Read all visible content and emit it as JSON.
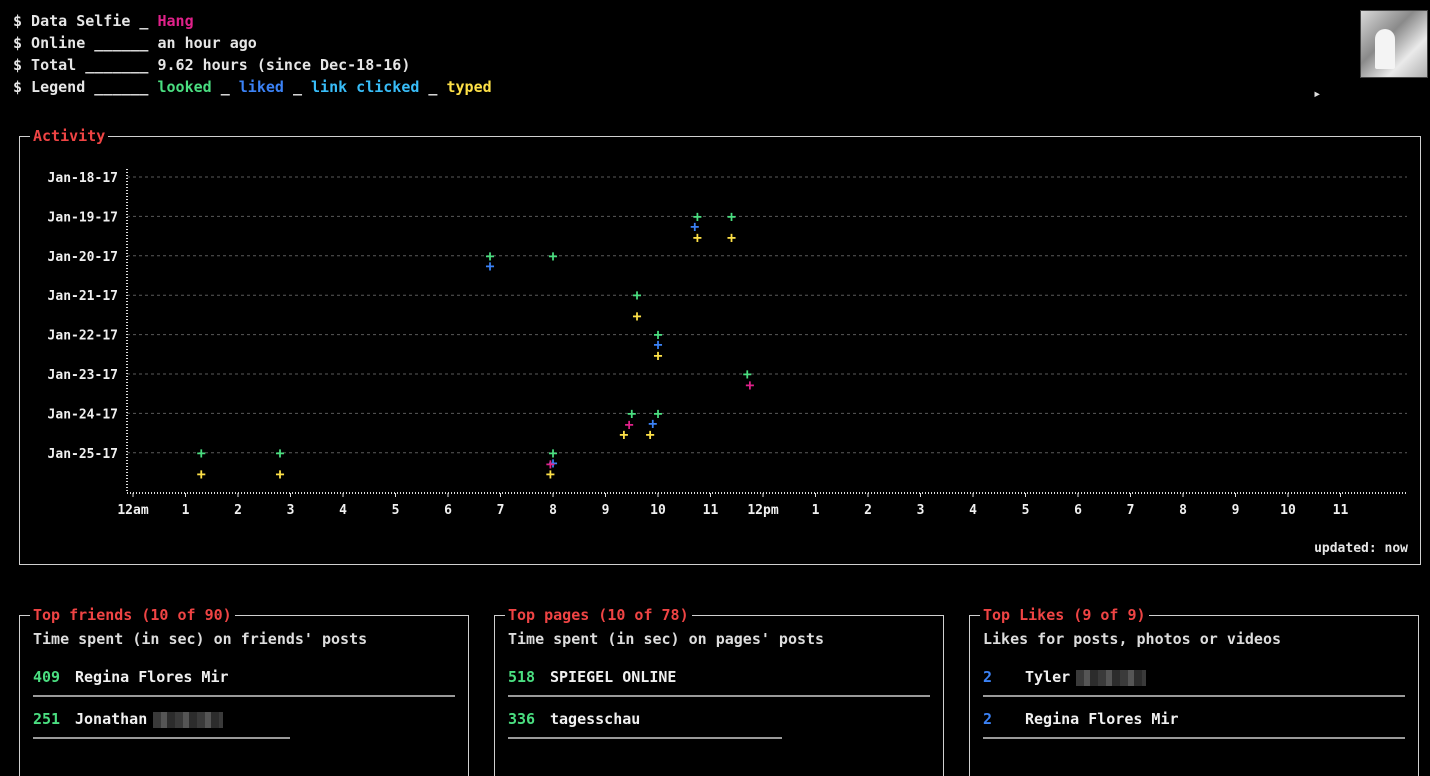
{
  "header": {
    "line1_prefix": "$ Data Selfie _ ",
    "user_name": "Hang",
    "line2_prefix": "$ Online ______ ",
    "online_value": "an hour ago",
    "line3_prefix": "$ Total _______ ",
    "total_value": "9.62 hours (since Dec-18-16)",
    "line4_prefix": "$ Legend ______ ",
    "legend_looked": "looked",
    "sep": " _ ",
    "legend_liked": "liked",
    "legend_link": "link clicked",
    "legend_typed": "typed"
  },
  "colors": {
    "looked": "#4ade80",
    "liked": "#3b82f6",
    "link": "#38bdf8",
    "typed": "#fde047",
    "other": "#e0218a",
    "title": "#ef4444"
  },
  "activity": {
    "title": "Activity",
    "updated": "updated: now"
  },
  "chart_data": {
    "type": "scatter",
    "y_categories": [
      "Jan-18-17",
      "Jan-19-17",
      "Jan-20-17",
      "Jan-21-17",
      "Jan-22-17",
      "Jan-23-17",
      "Jan-24-17",
      "Jan-25-17"
    ],
    "x_tick_labels": [
      "12am",
      "1",
      "2",
      "3",
      "4",
      "5",
      "6",
      "7",
      "8",
      "9",
      "10",
      "11",
      "12pm",
      "1",
      "2",
      "3",
      "4",
      "5",
      "6",
      "7",
      "8",
      "9",
      "10",
      "11"
    ],
    "x_range_hours": [
      0,
      24
    ],
    "grid": true,
    "series": [
      {
        "name": "looked",
        "marker": "+",
        "points": [
          [
            10.75,
            "Jan-19-17"
          ],
          [
            11.4,
            "Jan-19-17"
          ],
          [
            6.8,
            "Jan-20-17"
          ],
          [
            8.0,
            "Jan-20-17"
          ],
          [
            9.6,
            "Jan-21-17"
          ],
          [
            10.0,
            "Jan-22-17"
          ],
          [
            9.5,
            "Jan-24-17"
          ],
          [
            10.0,
            "Jan-24-17"
          ],
          [
            1.3,
            "Jan-25-17"
          ],
          [
            2.8,
            "Jan-25-17"
          ],
          [
            8.0,
            "Jan-25-17"
          ],
          [
            11.7,
            "Jan-23-17"
          ]
        ]
      },
      {
        "name": "liked",
        "marker": "+",
        "points": [
          [
            10.7,
            "Jan-19-17"
          ],
          [
            6.8,
            "Jan-20-17"
          ],
          [
            10.0,
            "Jan-22-17"
          ],
          [
            9.9,
            "Jan-24-17"
          ],
          [
            8.0,
            "Jan-25-17"
          ]
        ]
      },
      {
        "name": "typed",
        "marker": "+",
        "points": [
          [
            10.75,
            "Jan-19-17"
          ],
          [
            11.4,
            "Jan-19-17"
          ],
          [
            9.6,
            "Jan-21-17"
          ],
          [
            10.0,
            "Jan-22-17"
          ],
          [
            9.35,
            "Jan-24-17"
          ],
          [
            9.85,
            "Jan-24-17"
          ],
          [
            1.3,
            "Jan-25-17"
          ],
          [
            2.8,
            "Jan-25-17"
          ],
          [
            7.95,
            "Jan-25-17"
          ]
        ]
      },
      {
        "name": "other",
        "marker": "+",
        "points": [
          [
            9.45,
            "Jan-24-17"
          ],
          [
            11.75,
            "Jan-23-17"
          ],
          [
            7.95,
            "Jan-25-17"
          ]
        ]
      }
    ]
  },
  "friends": {
    "title": "Top friends (10 of 90)",
    "subtitle": "Time spent (in sec) on friends' posts",
    "rows": [
      {
        "value": "409",
        "name": "Regina Flores Mir",
        "fraction": 1.0
      },
      {
        "value": "251",
        "name": "Jonathan",
        "fraction": 0.61
      }
    ]
  },
  "pages": {
    "title": "Top pages (10 of 78)",
    "subtitle": "Time spent (in sec) on pages' posts",
    "rows": [
      {
        "value": "518",
        "name": "SPIEGEL ONLINE",
        "fraction": 1.0
      },
      {
        "value": "336",
        "name": "tagesschau",
        "fraction": 0.65
      }
    ]
  },
  "likes": {
    "title": "Top Likes (9 of 9)",
    "subtitle": "Likes for posts, photos or videos",
    "rows": [
      {
        "value": "2",
        "name": "Tyler",
        "fraction": 1.0
      },
      {
        "value": "2",
        "name": "Regina Flores Mir",
        "fraction": 1.0
      }
    ]
  }
}
